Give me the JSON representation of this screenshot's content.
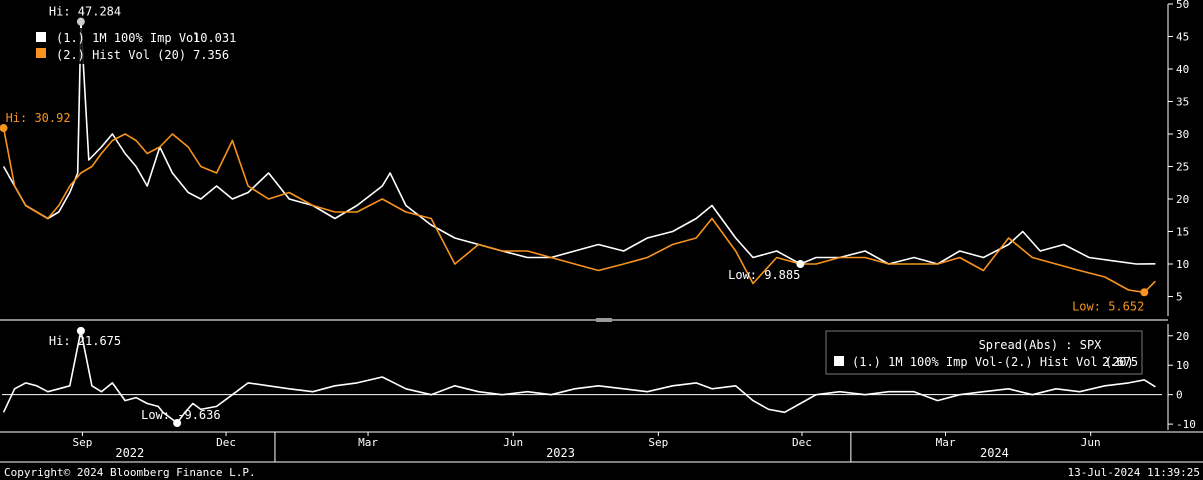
{
  "colors": {
    "background": "#000000",
    "series1": "#ffffff",
    "series2": "#f7931e",
    "text": "#ffffff",
    "grid": "#555555"
  },
  "chart_data": [
    {
      "type": "line",
      "y_axis_side": "right",
      "ylim": [
        2,
        50
      ],
      "yticks": [
        5,
        10,
        15,
        20,
        25,
        30,
        35,
        40,
        45,
        50
      ],
      "grid": false,
      "legend_position": "top-left",
      "series": [
        {
          "name": "(1.) 1M 100% Imp Vol",
          "last_value": "10.031",
          "color": "#ffffff",
          "x": [
            "2022-07-13",
            "2022-07-20",
            "2022-07-27",
            "2022-08-03",
            "2022-08-10",
            "2022-08-17",
            "2022-08-24",
            "2022-08-29",
            "2022-08-31",
            "2022-09-05",
            "2022-09-13",
            "2022-09-20",
            "2022-09-28",
            "2022-10-05",
            "2022-10-12",
            "2022-10-20",
            "2022-10-28",
            "2022-11-07",
            "2022-11-15",
            "2022-11-25",
            "2022-12-05",
            "2022-12-15",
            "2022-12-28",
            "2023-01-10",
            "2023-01-25",
            "2023-02-08",
            "2023-02-22",
            "2023-03-10",
            "2023-03-15",
            "2023-03-25",
            "2023-04-10",
            "2023-04-25",
            "2023-05-10",
            "2023-05-25",
            "2023-06-10",
            "2023-06-25",
            "2023-07-10",
            "2023-07-25",
            "2023-08-10",
            "2023-08-25",
            "2023-09-10",
            "2023-09-25",
            "2023-10-05",
            "2023-10-20",
            "2023-10-31",
            "2023-11-15",
            "2023-11-30",
            "2023-12-10",
            "2023-12-25",
            "2024-01-10",
            "2024-01-25",
            "2024-02-10",
            "2024-02-25",
            "2024-03-10",
            "2024-03-25",
            "2024-04-10",
            "2024-04-19",
            "2024-04-30",
            "2024-05-15",
            "2024-05-31",
            "2024-06-15",
            "2024-06-30",
            "2024-07-12"
          ],
          "values": [
            25,
            22,
            19,
            18,
            17,
            18,
            21,
            24,
            47.284,
            26,
            28,
            30,
            27,
            25,
            22,
            28,
            24,
            21,
            20,
            22,
            20,
            21,
            24,
            20,
            19,
            17,
            19,
            22,
            24,
            19,
            16,
            14,
            13,
            12,
            11,
            11,
            12,
            13,
            12,
            14,
            15,
            17,
            19,
            14,
            11,
            12,
            10,
            11,
            11,
            12,
            10,
            11,
            10,
            12,
            11,
            13,
            15,
            12,
            13,
            11,
            10.5,
            10,
            10.031
          ]
        },
        {
          "name": "(2.) Hist Vol (20)",
          "last_value": "7.356",
          "color": "#f7931e",
          "x": [
            "2022-07-13",
            "2022-07-20",
            "2022-07-27",
            "2022-08-03",
            "2022-08-10",
            "2022-08-17",
            "2022-08-24",
            "2022-08-31",
            "2022-09-07",
            "2022-09-13",
            "2022-09-20",
            "2022-09-28",
            "2022-10-05",
            "2022-10-12",
            "2022-10-20",
            "2022-10-28",
            "2022-11-07",
            "2022-11-15",
            "2022-11-25",
            "2022-12-05",
            "2022-12-15",
            "2022-12-28",
            "2023-01-10",
            "2023-01-25",
            "2023-02-08",
            "2023-02-22",
            "2023-03-10",
            "2023-03-25",
            "2023-04-10",
            "2023-04-25",
            "2023-05-10",
            "2023-05-25",
            "2023-06-10",
            "2023-06-25",
            "2023-07-10",
            "2023-07-25",
            "2023-08-10",
            "2023-08-25",
            "2023-09-10",
            "2023-09-25",
            "2023-10-05",
            "2023-10-20",
            "2023-10-31",
            "2023-11-15",
            "2023-11-30",
            "2023-12-10",
            "2023-12-25",
            "2024-01-10",
            "2024-01-25",
            "2024-02-10",
            "2024-02-25",
            "2024-03-10",
            "2024-03-25",
            "2024-04-10",
            "2024-04-25",
            "2024-05-10",
            "2024-05-25",
            "2024-06-10",
            "2024-06-25",
            "2024-07-05",
            "2024-07-12"
          ],
          "values": [
            30.92,
            22,
            19,
            18,
            17,
            19,
            22,
            24,
            25,
            27,
            29,
            30,
            29,
            27,
            28,
            30,
            28,
            25,
            24,
            29,
            22,
            20,
            21,
            19,
            18,
            18,
            20,
            18,
            17,
            10,
            13,
            12,
            12,
            11,
            10,
            9,
            10,
            11,
            13,
            14,
            17,
            12,
            7,
            11,
            10,
            10,
            11,
            11,
            10,
            10,
            10,
            11,
            9,
            14,
            11,
            10,
            9,
            8,
            6,
            5.652,
            7.356
          ]
        }
      ],
      "annotations": [
        {
          "text": "Hi: 47.284",
          "series": 0
        },
        {
          "text": "Hi: 30.92",
          "series": 1
        },
        {
          "text": "Low: 9.885",
          "series": 0
        },
        {
          "text": "Low: 5.652",
          "series": 1
        }
      ]
    },
    {
      "type": "line",
      "y_axis_side": "right",
      "ylim": [
        -12,
        24
      ],
      "yticks": [
        -10,
        0,
        10,
        20
      ],
      "legend_position": "top-right",
      "legend_title": "Spread(Abs) : SPX",
      "series": [
        {
          "name": "(1.) 1M 100% Imp Vol-(2.) Hist Vol (20)",
          "last_value": "2.675",
          "color": "#ffffff",
          "x": [
            "2022-07-13",
            "2022-07-20",
            "2022-07-27",
            "2022-08-03",
            "2022-08-10",
            "2022-08-17",
            "2022-08-24",
            "2022-08-31",
            "2022-09-07",
            "2022-09-13",
            "2022-09-20",
            "2022-09-28",
            "2022-10-05",
            "2022-10-12",
            "2022-10-19",
            "2022-10-22",
            "2022-10-27",
            "2022-10-31",
            "2022-11-05",
            "2022-11-10",
            "2022-11-15",
            "2022-11-25",
            "2022-12-05",
            "2022-12-15",
            "2022-12-28",
            "2023-01-10",
            "2023-01-25",
            "2023-02-08",
            "2023-02-22",
            "2023-03-10",
            "2023-03-25",
            "2023-04-10",
            "2023-04-25",
            "2023-05-10",
            "2023-05-25",
            "2023-06-10",
            "2023-06-25",
            "2023-07-10",
            "2023-07-25",
            "2023-08-10",
            "2023-08-25",
            "2023-09-10",
            "2023-09-25",
            "2023-10-05",
            "2023-10-20",
            "2023-10-31",
            "2023-11-10",
            "2023-11-20",
            "2023-11-30",
            "2023-12-10",
            "2023-12-25",
            "2024-01-10",
            "2024-01-25",
            "2024-02-10",
            "2024-02-25",
            "2024-03-10",
            "2024-03-25",
            "2024-04-10",
            "2024-04-25",
            "2024-05-10",
            "2024-05-25",
            "2024-06-10",
            "2024-06-25",
            "2024-07-05",
            "2024-07-12"
          ],
          "values": [
            -6,
            2,
            4,
            3,
            1,
            2,
            3,
            21.675,
            3,
            1,
            4,
            -2,
            -1,
            -3,
            -4,
            -6,
            -8,
            -9.636,
            -6,
            -3,
            -5,
            -4,
            0,
            4,
            3,
            2,
            1,
            3,
            4,
            6,
            2,
            0,
            3,
            1,
            0,
            1,
            0,
            2,
            3,
            2,
            1,
            3,
            4,
            2,
            3,
            -2,
            -5,
            -6,
            -3,
            0,
            1,
            0,
            1,
            1,
            -2,
            0,
            1,
            2,
            0,
            2,
            1,
            3,
            4,
            5,
            2.675
          ]
        }
      ],
      "annotations": [
        {
          "text": "Hi: 21.675"
        },
        {
          "text": "Low: -9.636"
        }
      ]
    }
  ],
  "x_axis": {
    "month_ticks": [
      {
        "date": "2022-09-01",
        "label": "Sep"
      },
      {
        "date": "2022-12-01",
        "label": "Dec"
      },
      {
        "date": "2023-03-01",
        "label": "Mar"
      },
      {
        "date": "2023-06-01",
        "label": "Jun"
      },
      {
        "date": "2023-09-01",
        "label": "Sep"
      },
      {
        "date": "2023-12-01",
        "label": "Dec"
      },
      {
        "date": "2024-03-01",
        "label": "Mar"
      },
      {
        "date": "2024-06-01",
        "label": "Jun"
      }
    ],
    "years": [
      {
        "label": "2022",
        "center": "2022-10-01"
      },
      {
        "label": "2023",
        "center": "2023-07-01"
      },
      {
        "label": "2024",
        "center": "2024-04-01"
      }
    ],
    "year_dividers": [
      "2023-01-01",
      "2024-01-01"
    ]
  },
  "footer": {
    "copyright": "Copyright© 2024 Bloomberg Finance L.P.",
    "timestamp": "13-Jul-2024 11:39:25"
  }
}
